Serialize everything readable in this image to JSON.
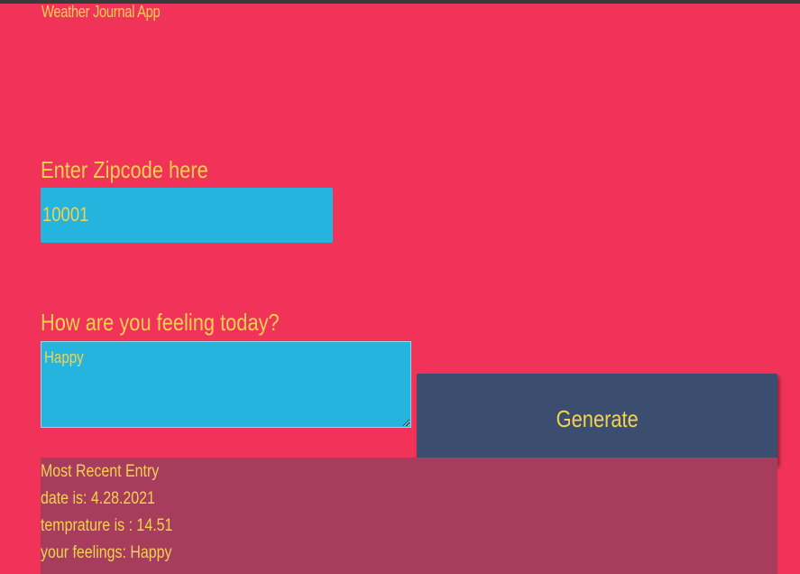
{
  "app": {
    "title": "Weather Journal App"
  },
  "zip": {
    "label": "Enter Zipcode here",
    "value": "10001"
  },
  "feelings": {
    "label": "How are you feeling today?",
    "value": "Happy"
  },
  "generate": {
    "label": "Generate"
  },
  "entry": {
    "heading": "Most Recent Entry",
    "date": "date is: 4.28.2021",
    "temperature": "temprature is : 14.51",
    "feelings": "your feelings: Happy"
  },
  "colors": {
    "background": "#f23359",
    "text": "#f3d250",
    "input": "#24b4de",
    "button": "#3c4e6f",
    "panel": "#a83c5d"
  }
}
